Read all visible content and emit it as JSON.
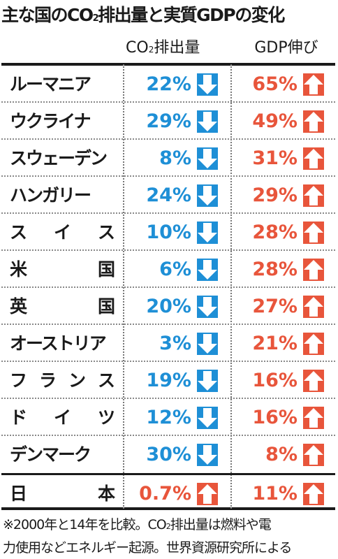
{
  "title": {
    "pre": "主な国のCO",
    "sub": "2",
    "post": "排出量と実質GDPの変化"
  },
  "headers": {
    "co2_pre": "CO",
    "co2_sub": "2",
    "co2_post": "排出量",
    "gdp": "GDP伸び"
  },
  "colors": {
    "down": "#1e8fd6",
    "up": "#e8553b"
  },
  "chart_data": {
    "type": "table",
    "columns": [
      "CO2排出量",
      "GDP伸び"
    ],
    "rows": [
      {
        "country": "ルーマニア",
        "co2": "22%",
        "co2_dir": "down",
        "gdp": "65%",
        "gdp_dir": "up"
      },
      {
        "country": "ウクライナ",
        "co2": "29%",
        "co2_dir": "down",
        "gdp": "49%",
        "gdp_dir": "up"
      },
      {
        "country": "スウェーデン",
        "co2": "8%",
        "co2_dir": "down",
        "gdp": "31%",
        "gdp_dir": "up"
      },
      {
        "country": "ハンガリー",
        "co2": "24%",
        "co2_dir": "down",
        "gdp": "29%",
        "gdp_dir": "up"
      },
      {
        "country": "スイス",
        "co2": "10%",
        "co2_dir": "down",
        "gdp": "28%",
        "gdp_dir": "up"
      },
      {
        "country": "米国",
        "co2": "6%",
        "co2_dir": "down",
        "gdp": "28%",
        "gdp_dir": "up"
      },
      {
        "country": "英国",
        "co2": "20%",
        "co2_dir": "down",
        "gdp": "27%",
        "gdp_dir": "up"
      },
      {
        "country": "オーストリア",
        "co2": "3%",
        "co2_dir": "down",
        "gdp": "21%",
        "gdp_dir": "up"
      },
      {
        "country": "フランス",
        "co2": "19%",
        "co2_dir": "down",
        "gdp": "16%",
        "gdp_dir": "up"
      },
      {
        "country": "ドイツ",
        "co2": "12%",
        "co2_dir": "down",
        "gdp": "16%",
        "gdp_dir": "up"
      },
      {
        "country": "デンマーク",
        "co2": "30%",
        "co2_dir": "down",
        "gdp": "8%",
        "gdp_dir": "up"
      },
      {
        "country": "日本",
        "co2": "0.7%",
        "co2_dir": "up",
        "gdp": "11%",
        "gdp_dir": "up"
      }
    ]
  },
  "note": {
    "line1_pre": "※2000年と14年を比較。CO",
    "line1_sub": "2",
    "line1_post": "排出量は燃料や電",
    "line2": "力使用などエネルギー起源。世界資源研究所による"
  }
}
